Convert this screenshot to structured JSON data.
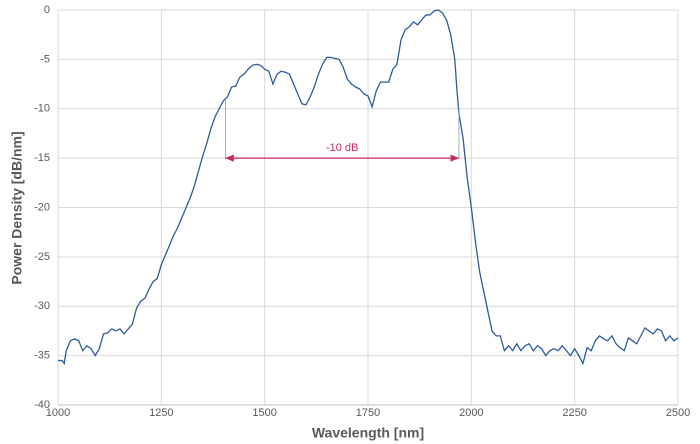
{
  "chart_data": {
    "type": "line",
    "xlabel": "Wavelength [nm]",
    "ylabel": "Power Density [dB/nm]",
    "x": [
      1000,
      1010,
      1015,
      1020,
      1030,
      1040,
      1050,
      1060,
      1070,
      1080,
      1090,
      1100,
      1110,
      1120,
      1130,
      1140,
      1150,
      1160,
      1170,
      1180,
      1190,
      1200,
      1210,
      1220,
      1230,
      1240,
      1250,
      1260,
      1270,
      1280,
      1290,
      1300,
      1310,
      1320,
      1330,
      1340,
      1350,
      1360,
      1370,
      1380,
      1390,
      1400,
      1410,
      1420,
      1430,
      1440,
      1450,
      1460,
      1470,
      1480,
      1490,
      1500,
      1510,
      1520,
      1530,
      1540,
      1550,
      1560,
      1570,
      1580,
      1590,
      1600,
      1610,
      1620,
      1630,
      1640,
      1650,
      1660,
      1670,
      1680,
      1690,
      1700,
      1710,
      1720,
      1730,
      1740,
      1750,
      1760,
      1770,
      1780,
      1790,
      1800,
      1810,
      1820,
      1830,
      1840,
      1850,
      1860,
      1870,
      1880,
      1890,
      1900,
      1910,
      1920,
      1930,
      1940,
      1950,
      1960,
      1965,
      1970,
      1980,
      1990,
      2000,
      2010,
      2020,
      2030,
      2040,
      2050,
      2060,
      2070,
      2080,
      2090,
      2100,
      2110,
      2120,
      2130,
      2140,
      2150,
      2160,
      2170,
      2180,
      2190,
      2200,
      2210,
      2220,
      2230,
      2240,
      2250,
      2260,
      2270,
      2280,
      2290,
      2300,
      2310,
      2320,
      2330,
      2340,
      2350,
      2360,
      2370,
      2380,
      2390,
      2400,
      2410,
      2420,
      2430,
      2440,
      2450,
      2460,
      2470,
      2480,
      2490,
      2500
    ],
    "values": [
      -35.5,
      -35.5,
      -35.8,
      -34.5,
      -33.5,
      -33.3,
      -33.5,
      -34.5,
      -34,
      -34.3,
      -35,
      -34.3,
      -32.8,
      -32.7,
      -32.3,
      -32.5,
      -32.3,
      -32.8,
      -32.3,
      -31.8,
      -30.2,
      -29.5,
      -29.2,
      -28.3,
      -27.5,
      -27.2,
      -25.8,
      -24.8,
      -23.8,
      -22.8,
      -22,
      -21,
      -20,
      -19,
      -17.8,
      -16.3,
      -14.8,
      -13.5,
      -12,
      -10.8,
      -10,
      -9.2,
      -8.8,
      -7.8,
      -7.7,
      -6.8,
      -6.5,
      -6,
      -5.6,
      -5.5,
      -5.6,
      -6,
      -6.2,
      -7.5,
      -6.5,
      -6.2,
      -6.3,
      -6.5,
      -7.5,
      -8.5,
      -9.5,
      -9.6,
      -8.8,
      -7.8,
      -6.5,
      -5.5,
      -4.8,
      -4.8,
      -4.9,
      -5,
      -5.8,
      -7,
      -7.5,
      -7.8,
      -8,
      -8.5,
      -8.7,
      -9.8,
      -8.2,
      -7.3,
      -7.3,
      -7.3,
      -6,
      -5.5,
      -3,
      -2,
      -1.7,
      -1.2,
      -1.5,
      -1,
      -0.5,
      -0.5,
      -0.1,
      0,
      -0.3,
      -1,
      -2.5,
      -5,
      -8,
      -10.5,
      -13,
      -17,
      -20,
      -23.5,
      -26.5,
      -28.5,
      -30.5,
      -32.5,
      -33,
      -33,
      -34.5,
      -34,
      -34.5,
      -33.8,
      -34.5,
      -34,
      -33.8,
      -34.5,
      -34,
      -34.3,
      -35,
      -34.5,
      -34.3,
      -34.5,
      -34,
      -34.5,
      -35,
      -34.3,
      -35,
      -35.8,
      -34.2,
      -34.5,
      -33.5,
      -33,
      -33.3,
      -33.5,
      -33,
      -33.8,
      -34.2,
      -34.5,
      -33.2,
      -33.5,
      -33.8,
      -33,
      -32.2,
      -32.5,
      -32.8,
      -32.3,
      -32.5,
      -33.5,
      -33,
      -33.5,
      -33.2
    ],
    "color": "#2e5c9a",
    "xlim": [
      1000,
      2500
    ],
    "xticks": [
      1000,
      1250,
      1500,
      1750,
      2000,
      2250,
      2500
    ],
    "ylim": [
      -40,
      0
    ],
    "yticks": [
      -40,
      -35,
      -30,
      -25,
      -20,
      -15,
      -10,
      -5,
      0
    ],
    "grid": true,
    "annotation": {
      "text": "-10 dB",
      "x": [
        1405,
        1970
      ],
      "y": -15,
      "color": "#c8285a"
    }
  }
}
